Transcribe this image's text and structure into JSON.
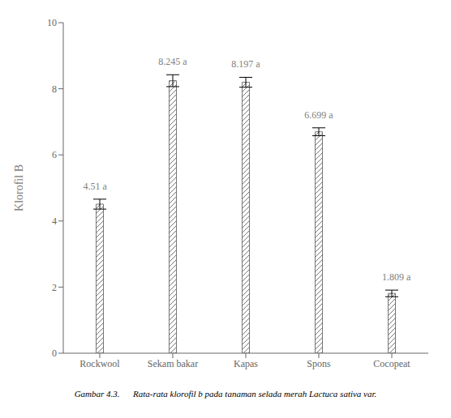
{
  "chart_data": {
    "type": "bar",
    "categories": [
      "Rockwool",
      "Sekam bakar",
      "Kapas",
      "Spons",
      "Cocopeat"
    ],
    "values": [
      4.51,
      8.245,
      8.197,
      6.699,
      1.809
    ],
    "errors": [
      0.15,
      0.18,
      0.15,
      0.12,
      0.1
    ],
    "data_labels": true,
    "value_labels": [
      "4.51 a",
      "8.245 a",
      "8.197 a",
      "6.699 a",
      "1.809 a"
    ],
    "ylabel": "Klorofil B",
    "ylim": [
      0,
      10
    ],
    "yticks": [
      0,
      2,
      4,
      6,
      8,
      10
    ],
    "color": "#ffffff",
    "grid": false,
    "caption": "Gambar 4.3.      Rata-rata klorofil b pada tanaman selada merah Lactuca sativa var."
  }
}
